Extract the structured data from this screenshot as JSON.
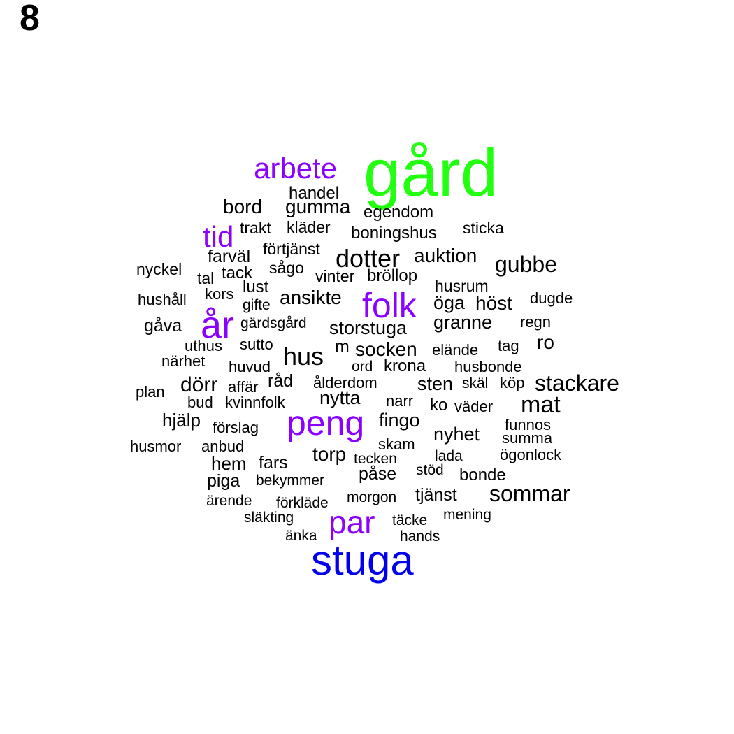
{
  "panel_label": "8",
  "colors": {
    "top": "#22ff11",
    "second": "#0000ee",
    "tier3": "#8b00ff",
    "rest": "#000000"
  },
  "words": [
    {
      "text": "gård",
      "tier": "top",
      "freq": 100
    },
    {
      "text": "stuga",
      "tier": "second",
      "freq": 70
    },
    {
      "text": "arbete",
      "tier": "tier3",
      "freq": 45
    },
    {
      "text": "tid",
      "tier": "tier3",
      "freq": 45
    },
    {
      "text": "år",
      "tier": "tier3",
      "freq": 50
    },
    {
      "text": "folk",
      "tier": "tier3",
      "freq": 50
    },
    {
      "text": "peng",
      "tier": "tier3",
      "freq": 50
    },
    {
      "text": "par",
      "tier": "tier3",
      "freq": 45
    },
    {
      "text": "dotter",
      "tier": "rest",
      "freq": 30
    },
    {
      "text": "hus",
      "tier": "rest",
      "freq": 30
    },
    {
      "text": "stackare",
      "tier": "rest",
      "freq": 28
    },
    {
      "text": "mat",
      "tier": "rest",
      "freq": 28
    },
    {
      "text": "sommar",
      "tier": "rest",
      "freq": 28
    },
    {
      "text": "gubbe",
      "tier": "rest",
      "freq": 28
    },
    {
      "text": "bord",
      "tier": "rest",
      "freq": 26
    },
    {
      "text": "gumma",
      "tier": "rest",
      "freq": 26
    },
    {
      "text": "auktion",
      "tier": "rest",
      "freq": 25
    },
    {
      "text": "ansikte",
      "tier": "rest",
      "freq": 25
    },
    {
      "text": "höst",
      "tier": "rest",
      "freq": 25
    },
    {
      "text": "dörr",
      "tier": "rest",
      "freq": 25
    },
    {
      "text": "torp",
      "tier": "rest",
      "freq": 25
    },
    {
      "text": "hem",
      "tier": "rest",
      "freq": 24
    },
    {
      "text": "socken",
      "tier": "rest",
      "freq": 23
    },
    {
      "text": "storstuga",
      "tier": "rest",
      "freq": 23
    },
    {
      "text": "granne",
      "tier": "rest",
      "freq": 23
    },
    {
      "text": "öga",
      "tier": "rest",
      "freq": 23
    },
    {
      "text": "sten",
      "tier": "rest",
      "freq": 23
    },
    {
      "text": "nytta",
      "tier": "rest",
      "freq": 23
    },
    {
      "text": "fingo",
      "tier": "rest",
      "freq": 23
    },
    {
      "text": "nyhet",
      "tier": "rest",
      "freq": 23
    },
    {
      "text": "ro",
      "tier": "rest",
      "freq": 23
    },
    {
      "text": "hjälp",
      "tier": "rest",
      "freq": 23
    },
    {
      "text": "tjänst",
      "tier": "rest",
      "freq": 22
    },
    {
      "text": "påse",
      "tier": "rest",
      "freq": 22
    },
    {
      "text": "råd",
      "tier": "rest",
      "freq": 22
    },
    {
      "text": "farväl",
      "tier": "rest",
      "freq": 22
    },
    {
      "text": "gåva",
      "tier": "rest",
      "freq": 22
    },
    {
      "text": "piga",
      "tier": "rest",
      "freq": 22
    },
    {
      "text": "fars",
      "tier": "rest",
      "freq": 22
    },
    {
      "text": "boningshus",
      "tier": "rest",
      "freq": 21
    },
    {
      "text": "bröllop",
      "tier": "rest",
      "freq": 21
    },
    {
      "text": "krona",
      "tier": "rest",
      "freq": 21
    },
    {
      "text": "lust",
      "tier": "rest",
      "freq": 21
    },
    {
      "text": "ko",
      "tier": "rest",
      "freq": 21
    },
    {
      "text": "bonde",
      "tier": "rest",
      "freq": 21
    },
    {
      "text": "tack",
      "tier": "rest",
      "freq": 21
    },
    {
      "text": "handel",
      "tier": "rest",
      "freq": 20
    },
    {
      "text": "egendom",
      "tier": "rest",
      "freq": 20
    },
    {
      "text": "kläder",
      "tier": "rest",
      "freq": 20
    },
    {
      "text": "trakt",
      "tier": "rest",
      "freq": 20
    },
    {
      "text": "sticka",
      "tier": "rest",
      "freq": 20
    },
    {
      "text": "förtjänst",
      "tier": "rest",
      "freq": 20
    },
    {
      "text": "nyckel",
      "tier": "rest",
      "freq": 20
    },
    {
      "text": "sågo",
      "tier": "rest",
      "freq": 20
    },
    {
      "text": "vinter",
      "tier": "rest",
      "freq": 20
    },
    {
      "text": "tal",
      "tier": "rest",
      "freq": 20
    },
    {
      "text": "husrum",
      "tier": "rest",
      "freq": 20
    },
    {
      "text": "hushåll",
      "tier": "rest",
      "freq": 20
    },
    {
      "text": "kors",
      "tier": "rest",
      "freq": 20
    },
    {
      "text": "gifte",
      "tier": "rest",
      "freq": 19
    },
    {
      "text": "dugde",
      "tier": "rest",
      "freq": 20
    },
    {
      "text": "gärdsgård",
      "tier": "rest",
      "freq": 19
    },
    {
      "text": "regn",
      "tier": "rest",
      "freq": 19
    },
    {
      "text": "uthus",
      "tier": "rest",
      "freq": 20
    },
    {
      "text": "sutto",
      "tier": "rest",
      "freq": 20
    },
    {
      "text": "m",
      "tier": "rest",
      "freq": 22
    },
    {
      "text": "elände",
      "tier": "rest",
      "freq": 20
    },
    {
      "text": "tag",
      "tier": "rest",
      "freq": 20
    },
    {
      "text": "närhet",
      "tier": "rest",
      "freq": 20
    },
    {
      "text": "huvud",
      "tier": "rest",
      "freq": 20
    },
    {
      "text": "ord",
      "tier": "rest",
      "freq": 19
    },
    {
      "text": "husbonde",
      "tier": "rest",
      "freq": 20
    },
    {
      "text": "affär",
      "tier": "rest",
      "freq": 20
    },
    {
      "text": "ålderdom",
      "tier": "rest",
      "freq": 20
    },
    {
      "text": "skäl",
      "tier": "rest",
      "freq": 19
    },
    {
      "text": "köp",
      "tier": "rest",
      "freq": 19
    },
    {
      "text": "plan",
      "tier": "rest",
      "freq": 20
    },
    {
      "text": "bud",
      "tier": "rest",
      "freq": 20
    },
    {
      "text": "kvinnfolk",
      "tier": "rest",
      "freq": 20
    },
    {
      "text": "narr",
      "tier": "rest",
      "freq": 20
    },
    {
      "text": "väder",
      "tier": "rest",
      "freq": 20
    },
    {
      "text": "förslag",
      "tier": "rest",
      "freq": 20
    },
    {
      "text": "funnos",
      "tier": "rest",
      "freq": 19
    },
    {
      "text": "summa",
      "tier": "rest",
      "freq": 20
    },
    {
      "text": "husmor",
      "tier": "rest",
      "freq": 20
    },
    {
      "text": "anbud",
      "tier": "rest",
      "freq": 20
    },
    {
      "text": "skam",
      "tier": "rest",
      "freq": 20
    },
    {
      "text": "lada",
      "tier": "rest",
      "freq": 19
    },
    {
      "text": "ögonlock",
      "tier": "rest",
      "freq": 20
    },
    {
      "text": "tecken",
      "tier": "rest",
      "freq": 19
    },
    {
      "text": "bekymmer",
      "tier": "rest",
      "freq": 19
    },
    {
      "text": "stöd",
      "tier": "rest",
      "freq": 19
    },
    {
      "text": "ärende",
      "tier": "rest",
      "freq": 19
    },
    {
      "text": "förkläde",
      "tier": "rest",
      "freq": 19
    },
    {
      "text": "morgon",
      "tier": "rest",
      "freq": 19
    },
    {
      "text": "mening",
      "tier": "rest",
      "freq": 19
    },
    {
      "text": "släkting",
      "tier": "rest",
      "freq": 19
    },
    {
      "text": "täcke",
      "tier": "rest",
      "freq": 19
    },
    {
      "text": "änka",
      "tier": "rest",
      "freq": 19
    },
    {
      "text": "hands",
      "tier": "rest",
      "freq": 19
    }
  ]
}
